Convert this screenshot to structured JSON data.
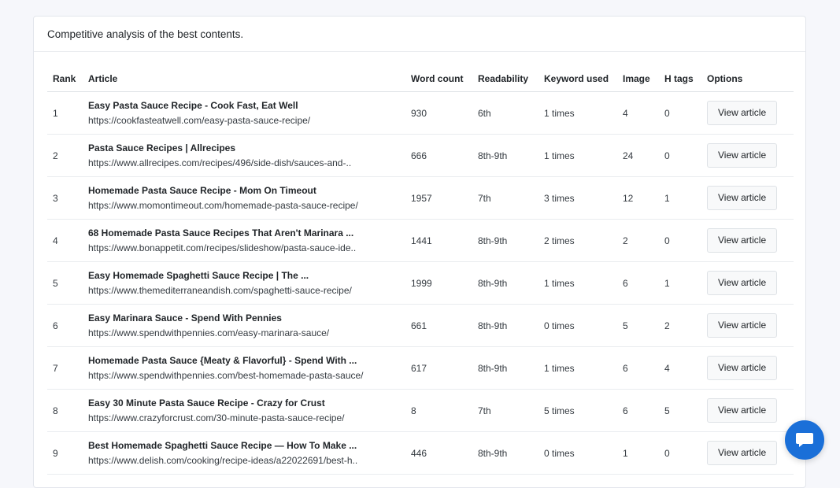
{
  "card": {
    "title": "Competitive analysis of the best contents."
  },
  "table": {
    "headers": {
      "rank": "Rank",
      "article": "Article",
      "word_count": "Word count",
      "readability": "Readability",
      "keyword_used": "Keyword used",
      "image": "Image",
      "h_tags": "H tags",
      "options": "Options"
    },
    "rows": [
      {
        "rank": "1",
        "title": "Easy Pasta Sauce Recipe - Cook Fast, Eat Well",
        "url": "https://cookfasteatwell.com/easy-pasta-sauce-recipe/",
        "word_count": "930",
        "readability": "6th",
        "keyword_used": "1 times",
        "image": "4",
        "h_tags": "0",
        "button": "View article"
      },
      {
        "rank": "2",
        "title": "Pasta Sauce Recipes | Allrecipes",
        "url": "https://www.allrecipes.com/recipes/496/side-dish/sauces-and-..",
        "word_count": "666",
        "readability": "8th-9th",
        "keyword_used": "1 times",
        "image": "24",
        "h_tags": "0",
        "button": "View article"
      },
      {
        "rank": "3",
        "title": "Homemade Pasta Sauce Recipe - Mom On Timeout",
        "url": "https://www.momontimeout.com/homemade-pasta-sauce-recipe/",
        "word_count": "1957",
        "readability": "7th",
        "keyword_used": "3 times",
        "image": "12",
        "h_tags": "1",
        "button": "View article"
      },
      {
        "rank": "4",
        "title": "68 Homemade Pasta Sauce Recipes That Aren't Marinara ...",
        "url": "https://www.bonappetit.com/recipes/slideshow/pasta-sauce-ide..",
        "word_count": "1441",
        "readability": "8th-9th",
        "keyword_used": "2 times",
        "image": "2",
        "h_tags": "0",
        "button": "View article"
      },
      {
        "rank": "5",
        "title": "Easy Homemade Spaghetti Sauce Recipe | The ...",
        "url": "https://www.themediterraneandish.com/spaghetti-sauce-recipe/",
        "word_count": "1999",
        "readability": "8th-9th",
        "keyword_used": "1 times",
        "image": "6",
        "h_tags": "1",
        "button": "View article"
      },
      {
        "rank": "6",
        "title": "Easy Marinara Sauce - Spend With Pennies",
        "url": "https://www.spendwithpennies.com/easy-marinara-sauce/",
        "word_count": "661",
        "readability": "8th-9th",
        "keyword_used": "0 times",
        "image": "5",
        "h_tags": "2",
        "button": "View article"
      },
      {
        "rank": "7",
        "title": "Homemade Pasta Sauce {Meaty & Flavorful} - Spend With ...",
        "url": "https://www.spendwithpennies.com/best-homemade-pasta-sauce/",
        "word_count": "617",
        "readability": "8th-9th",
        "keyword_used": "1 times",
        "image": "6",
        "h_tags": "4",
        "button": "View article"
      },
      {
        "rank": "8",
        "title": "Easy 30 Minute Pasta Sauce Recipe - Crazy for Crust",
        "url": "https://www.crazyforcrust.com/30-minute-pasta-sauce-recipe/",
        "word_count": "8",
        "readability": "7th",
        "keyword_used": "5 times",
        "image": "6",
        "h_tags": "5",
        "button": "View article"
      },
      {
        "rank": "9",
        "title": "Best Homemade Spaghetti Sauce Recipe — How To Make ...",
        "url": "https://www.delish.com/cooking/recipe-ideas/a22022691/best-h..",
        "word_count": "446",
        "readability": "8th-9th",
        "keyword_used": "0 times",
        "image": "1",
        "h_tags": "0",
        "button": "View article"
      }
    ]
  },
  "chat": {
    "icon": "chat-bubble-icon",
    "color": "#1a6fd8"
  }
}
